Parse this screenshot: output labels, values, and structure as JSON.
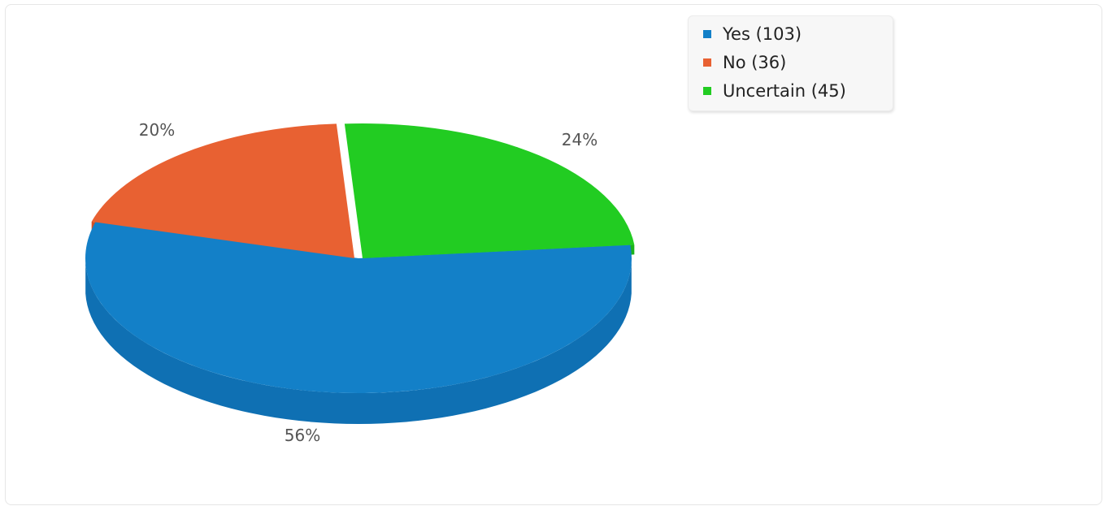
{
  "chart_data": {
    "type": "pie",
    "style": "3d",
    "slices": [
      {
        "name": "Yes",
        "count": 103,
        "percent_label": "56%",
        "color": "#1380c8",
        "side_color": "#0f70b3"
      },
      {
        "name": "No",
        "count": 36,
        "percent_label": "20%",
        "color": "#e86132",
        "side_color": "#d14e22"
      },
      {
        "name": "Uncertain",
        "count": 45,
        "percent_label": "24%",
        "color": "#22cc22",
        "side_color": "#1cb31c"
      }
    ],
    "legend_labels": [
      "Yes (103)",
      "No (36)",
      "Uncertain (45)"
    ],
    "legend_placement": "top-right"
  }
}
